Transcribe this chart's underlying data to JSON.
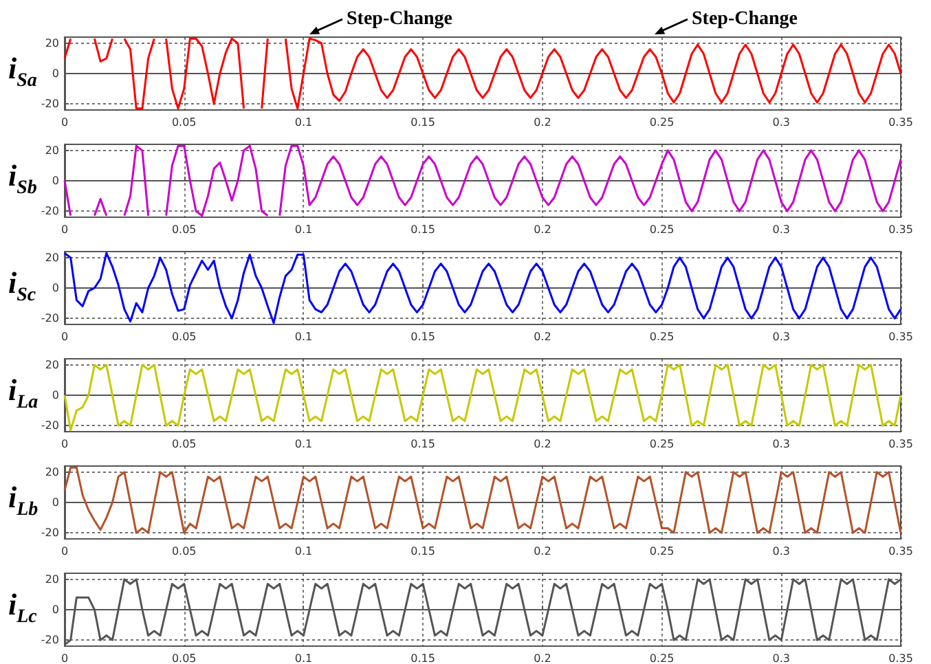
{
  "chart_data": [
    {
      "type": "line",
      "ylabel": "i$_{Sa}$",
      "color": "#ff0000",
      "grid": true,
      "xlim": [
        0,
        0.35
      ],
      "xticks": [
        0,
        0.05,
        0.1,
        0.15,
        0.2,
        0.25,
        0.3,
        0.35
      ],
      "ylim": [
        -24,
        24
      ],
      "yticks": [
        -20,
        0,
        20
      ],
      "annotations": [
        "Step-Change",
        "Step-Change"
      ],
      "x": [
        0,
        0.0025,
        0.005,
        0.0075,
        0.01,
        0.0125,
        0.015,
        0.0175,
        0.02,
        0.0225,
        0.025,
        0.0275,
        0.03,
        0.0325,
        0.035,
        0.0375,
        0.04,
        0.0425,
        0.045,
        0.0475,
        0.05,
        0.0525,
        0.055,
        0.0575,
        0.06,
        0.0625,
        0.065,
        0.0675,
        0.07,
        0.0725,
        0.075,
        0.0775,
        0.08,
        0.0825,
        0.085,
        0.0875,
        0.09,
        0.0925,
        0.095,
        0.0975,
        0.1,
        0.1025,
        0.105,
        0.1075,
        0.11,
        0.1125,
        0.115,
        0.1175,
        0.12,
        0.1225,
        0.125,
        0.1275,
        0.13,
        0.1325,
        0.135,
        0.1375,
        0.14,
        0.1425,
        0.145,
        0.1475,
        0.15,
        0.1525,
        0.155,
        0.1575,
        0.16,
        0.1625,
        0.165,
        0.1675,
        0.17,
        0.1725,
        0.175,
        0.1775,
        0.18,
        0.1825,
        0.185,
        0.1875,
        0.19,
        0.1925,
        0.195,
        0.1975,
        0.2,
        0.2025,
        0.205,
        0.2075,
        0.21,
        0.2125,
        0.215,
        0.2175,
        0.22,
        0.2225,
        0.225,
        0.2275,
        0.23,
        0.2325,
        0.235,
        0.2375,
        0.24,
        0.2425,
        0.245,
        0.2475,
        0.25,
        0.2525,
        0.255,
        0.2575,
        0.26,
        0.2625,
        0.265,
        0.2675,
        0.27,
        0.2725,
        0.275,
        0.2775,
        0.28,
        0.2825,
        0.285,
        0.2875,
        0.29,
        0.2925,
        0.295,
        0.2975,
        0.3,
        0.3025,
        0.305,
        0.3075,
        0.31,
        0.3125,
        0.315,
        0.3175,
        0.32,
        0.3225,
        0.325,
        0.3275,
        0.33,
        0.3325,
        0.335,
        0.3375,
        0.34,
        0.3425,
        0.345,
        0.3475,
        0.35
      ],
      "values": [
        10,
        23,
        null,
        null,
        null,
        23,
        8,
        10,
        23,
        null,
        23,
        16,
        -23,
        -23,
        10,
        23,
        null,
        23,
        -10,
        -23,
        -10,
        23,
        23,
        18,
        0,
        -20,
        0,
        14,
        23,
        20,
        -23,
        null,
        null,
        -23,
        23,
        null,
        null,
        23,
        -10,
        -23,
        0,
        23,
        22,
        20,
        0,
        -14,
        -18,
        -12,
        0,
        11,
        16,
        11,
        0,
        -11,
        -16,
        -11,
        0,
        11,
        16,
        11,
        0,
        -11,
        -16,
        -11,
        0,
        11,
        16,
        11,
        0,
        -11,
        -16,
        -11,
        0,
        11,
        16,
        11,
        0,
        -11,
        -16,
        -11,
        0,
        11,
        16,
        11,
        0,
        -11,
        -16,
        -11,
        0,
        11,
        16,
        11,
        0,
        -11,
        -16,
        -11,
        0,
        11,
        16,
        11,
        0,
        -13,
        -19,
        -13,
        0,
        13,
        19,
        13,
        0,
        -13,
        -19,
        -13,
        0,
        13,
        19,
        13,
        0,
        -13,
        -19,
        -13,
        0,
        13,
        19,
        13,
        0,
        -13,
        -19,
        -13,
        0,
        13,
        19,
        13,
        0,
        -13,
        -19,
        -13,
        0,
        13,
        19,
        13,
        0
      ]
    },
    {
      "type": "line",
      "ylabel": "i$_{Sb}$",
      "color": "#cc00cc",
      "grid": true,
      "xlim": [
        0,
        0.35
      ],
      "xticks": [
        0,
        0.05,
        0.1,
        0.15,
        0.2,
        0.25,
        0.3,
        0.35
      ],
      "ylim": [
        -24,
        24
      ],
      "yticks": [
        -20,
        0,
        20
      ],
      "x": [
        0,
        0.0025,
        0.005,
        0.0075,
        0.01,
        0.0125,
        0.015,
        0.0175,
        0.02,
        0.0225,
        0.025,
        0.0275,
        0.03,
        0.0325,
        0.035,
        0.0375,
        0.04,
        0.0425,
        0.045,
        0.0475,
        0.05,
        0.0525,
        0.055,
        0.0575,
        0.06,
        0.0625,
        0.065,
        0.0675,
        0.07,
        0.0725,
        0.075,
        0.0775,
        0.08,
        0.0825,
        0.085,
        0.0875,
        0.09,
        0.0925,
        0.095,
        0.0975,
        0.1,
        0.1025,
        0.105,
        0.1075,
        0.11,
        0.1125,
        0.115,
        0.1175,
        0.12,
        0.1225,
        0.125,
        0.1275,
        0.13,
        0.1325,
        0.135,
        0.1375,
        0.14,
        0.1425,
        0.145,
        0.1475,
        0.15,
        0.1525,
        0.155,
        0.1575,
        0.16,
        0.1625,
        0.165,
        0.1675,
        0.17,
        0.1725,
        0.175,
        0.1775,
        0.18,
        0.1825,
        0.185,
        0.1875,
        0.19,
        0.1925,
        0.195,
        0.1975,
        0.2,
        0.2025,
        0.205,
        0.2075,
        0.21,
        0.2125,
        0.215,
        0.2175,
        0.22,
        0.2225,
        0.225,
        0.2275,
        0.23,
        0.2325,
        0.235,
        0.2375,
        0.24,
        0.2425,
        0.245,
        0.2475,
        0.25,
        0.2525,
        0.255,
        0.2575,
        0.26,
        0.2625,
        0.265,
        0.2675,
        0.27,
        0.2725,
        0.275,
        0.2775,
        0.28,
        0.2825,
        0.285,
        0.2875,
        0.29,
        0.2925,
        0.295,
        0.2975,
        0.3,
        0.3025,
        0.305,
        0.3075,
        0.31,
        0.3125,
        0.315,
        0.3175,
        0.32,
        0.3225,
        0.325,
        0.3275,
        0.33,
        0.3325,
        0.335,
        0.3375,
        0.34,
        0.3425,
        0.345,
        0.3475,
        0.35
      ],
      "values": [
        0,
        -23,
        null,
        null,
        null,
        -23,
        -12,
        -23,
        null,
        null,
        -23,
        -10,
        23,
        20,
        -23,
        null,
        null,
        -23,
        10,
        23,
        23,
        0,
        -20,
        -23,
        -10,
        8,
        12,
        0,
        -13,
        0,
        20,
        23,
        8,
        -20,
        -23,
        null,
        -23,
        10,
        23,
        23,
        10,
        -16,
        -11,
        0,
        11,
        16,
        11,
        0,
        -11,
        -16,
        -11,
        0,
        11,
        16,
        11,
        0,
        -11,
        -16,
        -11,
        0,
        11,
        16,
        11,
        0,
        -11,
        -16,
        -11,
        0,
        11,
        16,
        11,
        0,
        -11,
        -16,
        -11,
        0,
        11,
        16,
        11,
        0,
        -11,
        -16,
        -11,
        0,
        11,
        16,
        11,
        0,
        -11,
        -16,
        -11,
        0,
        11,
        16,
        11,
        0,
        -11,
        -16,
        -11,
        0,
        11,
        20,
        14,
        0,
        -14,
        -20,
        -14,
        0,
        14,
        20,
        14,
        0,
        -14,
        -20,
        -14,
        0,
        14,
        20,
        14,
        0,
        -14,
        -20,
        -14,
        0,
        14,
        20,
        14,
        0,
        -14,
        -20,
        -14,
        0,
        14,
        20,
        14,
        0,
        -14,
        -20,
        -14,
        0,
        14
      ]
    },
    {
      "type": "line",
      "ylabel": "i$_{Sc}$",
      "color": "#0000ff",
      "grid": true,
      "xlim": [
        0,
        0.35
      ],
      "xticks": [
        0,
        0.05,
        0.1,
        0.15,
        0.2,
        0.25,
        0.3,
        0.35
      ],
      "ylim": [
        -24,
        24
      ],
      "yticks": [
        -20,
        0,
        20
      ],
      "x": [
        0,
        0.0025,
        0.005,
        0.0075,
        0.01,
        0.0125,
        0.015,
        0.0175,
        0.02,
        0.0225,
        0.025,
        0.0275,
        0.03,
        0.0325,
        0.035,
        0.0375,
        0.04,
        0.0425,
        0.045,
        0.0475,
        0.05,
        0.0525,
        0.055,
        0.0575,
        0.06,
        0.0625,
        0.065,
        0.0675,
        0.07,
        0.0725,
        0.075,
        0.0775,
        0.08,
        0.0825,
        0.085,
        0.0875,
        0.09,
        0.0925,
        0.095,
        0.0975,
        0.1,
        0.1025,
        0.105,
        0.1075,
        0.11,
        0.1125,
        0.115,
        0.1175,
        0.12,
        0.1225,
        0.125,
        0.1275,
        0.13,
        0.1325,
        0.135,
        0.1375,
        0.14,
        0.1425,
        0.145,
        0.1475,
        0.15,
        0.1525,
        0.155,
        0.1575,
        0.16,
        0.1625,
        0.165,
        0.1675,
        0.17,
        0.1725,
        0.175,
        0.1775,
        0.18,
        0.1825,
        0.185,
        0.1875,
        0.19,
        0.1925,
        0.195,
        0.1975,
        0.2,
        0.2025,
        0.205,
        0.2075,
        0.21,
        0.2125,
        0.215,
        0.2175,
        0.22,
        0.2225,
        0.225,
        0.2275,
        0.23,
        0.2325,
        0.235,
        0.2375,
        0.24,
        0.2425,
        0.245,
        0.2475,
        0.25,
        0.2525,
        0.255,
        0.2575,
        0.26,
        0.2625,
        0.265,
        0.2675,
        0.27,
        0.2725,
        0.275,
        0.2775,
        0.28,
        0.2825,
        0.285,
        0.2875,
        0.29,
        0.2925,
        0.295,
        0.2975,
        0.3,
        0.3025,
        0.305,
        0.3075,
        0.31,
        0.3125,
        0.315,
        0.3175,
        0.32,
        0.3225,
        0.325,
        0.3275,
        0.33,
        0.3325,
        0.335,
        0.3375,
        0.34,
        0.3425,
        0.345,
        0.3475,
        0.35
      ],
      "values": [
        23,
        20,
        -8,
        -12,
        -2,
        0,
        6,
        23,
        14,
        2,
        -14,
        -22,
        -10,
        -16,
        0,
        8,
        20,
        12,
        -4,
        -15,
        -14,
        2,
        10,
        18,
        12,
        18,
        0,
        -12,
        -20,
        -8,
        10,
        22,
        8,
        0,
        -12,
        -23,
        -6,
        8,
        12,
        22,
        22,
        -8,
        -14,
        -16,
        -11,
        0,
        11,
        16,
        11,
        0,
        -11,
        -16,
        -11,
        0,
        11,
        16,
        11,
        0,
        -11,
        -16,
        -11,
        0,
        11,
        16,
        11,
        0,
        -11,
        -16,
        -11,
        0,
        11,
        16,
        11,
        0,
        -11,
        -16,
        -11,
        0,
        11,
        16,
        11,
        0,
        -11,
        -16,
        -11,
        0,
        11,
        16,
        11,
        0,
        -11,
        -16,
        -11,
        0,
        11,
        16,
        11,
        0,
        -11,
        -16,
        -11,
        0,
        14,
        20,
        14,
        0,
        -14,
        -20,
        -14,
        0,
        14,
        20,
        14,
        0,
        -14,
        -20,
        -14,
        0,
        14,
        20,
        14,
        0,
        -14,
        -20,
        -14,
        0,
        14,
        20,
        14,
        0,
        -14,
        -20,
        -14,
        0,
        14,
        20,
        14,
        0,
        -14,
        -20,
        -14
      ]
    },
    {
      "type": "line",
      "ylabel": "i$_{La}$",
      "color": "#c8c800",
      "grid": true,
      "xlim": [
        0,
        0.35
      ],
      "xticks": [
        0,
        0.05,
        0.1,
        0.15,
        0.2,
        0.25,
        0.3,
        0.35
      ],
      "ylim": [
        -24,
        24
      ],
      "yticks": [
        -20,
        0,
        20
      ],
      "x": [
        0,
        0.0025,
        0.005,
        0.0075,
        0.01,
        0.0125,
        0.015,
        0.0175,
        0.02,
        0.0225,
        0.025,
        0.0275,
        0.03,
        0.0325,
        0.035,
        0.0375,
        0.04,
        0.0425,
        0.045,
        0.0475,
        0.05,
        0.0525,
        0.055,
        0.0575,
        0.06,
        0.0625,
        0.065,
        0.0675,
        0.07,
        0.0725,
        0.075,
        0.0775,
        0.08,
        0.0825,
        0.085,
        0.0875,
        0.09,
        0.0925,
        0.095,
        0.0975,
        0.1,
        0.1025,
        0.105,
        0.1075,
        0.11,
        0.1125,
        0.115,
        0.1175,
        0.12,
        0.1225,
        0.125,
        0.1275,
        0.13,
        0.1325,
        0.135,
        0.1375,
        0.14,
        0.1425,
        0.145,
        0.1475,
        0.15,
        0.1525,
        0.155,
        0.1575,
        0.16,
        0.1625,
        0.165,
        0.1675,
        0.17,
        0.1725,
        0.175,
        0.1775,
        0.18,
        0.1825,
        0.185,
        0.1875,
        0.19,
        0.1925,
        0.195,
        0.1975,
        0.2,
        0.2025,
        0.205,
        0.2075,
        0.21,
        0.2125,
        0.215,
        0.2175,
        0.22,
        0.2225,
        0.225,
        0.2275,
        0.23,
        0.2325,
        0.235,
        0.2375,
        0.24,
        0.2425,
        0.245,
        0.2475,
        0.25,
        0.2525,
        0.255,
        0.2575,
        0.26,
        0.2625,
        0.265,
        0.2675,
        0.27,
        0.2725,
        0.275,
        0.2775,
        0.28,
        0.2825,
        0.285,
        0.2875,
        0.29,
        0.2925,
        0.295,
        0.2975,
        0.3,
        0.3025,
        0.305,
        0.3075,
        0.31,
        0.3125,
        0.315,
        0.3175,
        0.32,
        0.3225,
        0.325,
        0.3275,
        0.33,
        0.3325,
        0.335,
        0.3375,
        0.34,
        0.3425,
        0.345,
        0.3475,
        0.35
      ],
      "values": [
        0,
        -23,
        -10,
        -8,
        0,
        20,
        17,
        20,
        0,
        -20,
        -17,
        -20,
        0,
        20,
        17,
        20,
        0,
        -20,
        -17,
        -20,
        0,
        17,
        14,
        17,
        0,
        -17,
        -14,
        -17,
        0,
        17,
        14,
        17,
        0,
        -17,
        -14,
        -17,
        0,
        17,
        14,
        17,
        0,
        -17,
        -14,
        -17,
        0,
        17,
        14,
        17,
        0,
        -17,
        -14,
        -17,
        0,
        17,
        14,
        17,
        0,
        -17,
        -14,
        -17,
        0,
        17,
        14,
        17,
        0,
        -17,
        -14,
        -17,
        0,
        17,
        14,
        17,
        0,
        -17,
        -14,
        -17,
        0,
        17,
        14,
        17,
        0,
        -17,
        -14,
        -17,
        0,
        17,
        14,
        17,
        0,
        -17,
        -14,
        -17,
        0,
        17,
        14,
        17,
        0,
        -17,
        -14,
        -17,
        0,
        20,
        17,
        20,
        0,
        -20,
        -17,
        -20,
        0,
        20,
        17,
        20,
        0,
        -20,
        -17,
        -20,
        0,
        20,
        17,
        20,
        0,
        -20,
        -17,
        -20,
        0,
        20,
        17,
        20,
        0,
        -20,
        -17,
        -20,
        0,
        20,
        17,
        20,
        0,
        -20,
        -17,
        -20,
        0
      ]
    },
    {
      "type": "line",
      "ylabel": "i$_{Lb}$",
      "color": "#b5522a",
      "grid": true,
      "xlim": [
        0,
        0.35
      ],
      "xticks": [
        0,
        0.05,
        0.1,
        0.15,
        0.2,
        0.25,
        0.3,
        0.35
      ],
      "ylim": [
        -24,
        24
      ],
      "yticks": [
        -20,
        0,
        20
      ],
      "x": [
        0,
        0.0025,
        0.005,
        0.0075,
        0.01,
        0.0125,
        0.015,
        0.0175,
        0.02,
        0.0225,
        0.025,
        0.0275,
        0.03,
        0.0325,
        0.035,
        0.0375,
        0.04,
        0.0425,
        0.045,
        0.0475,
        0.05,
        0.0525,
        0.055,
        0.0575,
        0.06,
        0.0625,
        0.065,
        0.0675,
        0.07,
        0.0725,
        0.075,
        0.0775,
        0.08,
        0.0825,
        0.085,
        0.0875,
        0.09,
        0.0925,
        0.095,
        0.0975,
        0.1,
        0.1025,
        0.105,
        0.1075,
        0.11,
        0.1125,
        0.115,
        0.1175,
        0.12,
        0.1225,
        0.125,
        0.1275,
        0.13,
        0.1325,
        0.135,
        0.1375,
        0.14,
        0.1425,
        0.145,
        0.1475,
        0.15,
        0.1525,
        0.155,
        0.1575,
        0.16,
        0.1625,
        0.165,
        0.1675,
        0.17,
        0.1725,
        0.175,
        0.1775,
        0.18,
        0.1825,
        0.185,
        0.1875,
        0.19,
        0.1925,
        0.195,
        0.1975,
        0.2,
        0.2025,
        0.205,
        0.2075,
        0.21,
        0.2125,
        0.215,
        0.2175,
        0.22,
        0.2225,
        0.225,
        0.2275,
        0.23,
        0.2325,
        0.235,
        0.2375,
        0.24,
        0.2425,
        0.245,
        0.2475,
        0.25,
        0.2525,
        0.255,
        0.2575,
        0.26,
        0.2625,
        0.265,
        0.2675,
        0.27,
        0.2725,
        0.275,
        0.2775,
        0.28,
        0.2825,
        0.285,
        0.2875,
        0.29,
        0.2925,
        0.295,
        0.2975,
        0.3,
        0.3025,
        0.305,
        0.3075,
        0.31,
        0.3125,
        0.315,
        0.3175,
        0.32,
        0.3225,
        0.325,
        0.3275,
        0.33,
        0.3325,
        0.335,
        0.3375,
        0.34,
        0.3425,
        0.345,
        0.3475,
        0.35
      ],
      "values": [
        8,
        23,
        23,
        5,
        -5,
        -12,
        -18,
        -10,
        0,
        17,
        20,
        0,
        -20,
        -17,
        -20,
        0,
        20,
        17,
        20,
        0,
        -20,
        -14,
        -17,
        0,
        17,
        14,
        17,
        0,
        -17,
        -14,
        -17,
        0,
        17,
        14,
        17,
        0,
        -17,
        -14,
        -17,
        0,
        17,
        14,
        17,
        0,
        -17,
        -14,
        -17,
        0,
        17,
        14,
        17,
        0,
        -17,
        -14,
        -17,
        0,
        17,
        14,
        17,
        0,
        -17,
        -14,
        -17,
        0,
        17,
        14,
        17,
        0,
        -17,
        -14,
        -17,
        0,
        17,
        14,
        17,
        0,
        -17,
        -14,
        -17,
        0,
        17,
        14,
        17,
        0,
        -17,
        -14,
        -17,
        0,
        17,
        14,
        17,
        0,
        -17,
        -14,
        -17,
        0,
        17,
        14,
        17,
        0,
        -17,
        -17,
        -20,
        0,
        20,
        17,
        20,
        0,
        -20,
        -17,
        -20,
        0,
        20,
        17,
        20,
        0,
        -20,
        -17,
        -20,
        0,
        20,
        17,
        20,
        0,
        -20,
        -17,
        -20,
        0,
        20,
        17,
        20,
        0,
        -20,
        -17,
        -20,
        0,
        20,
        17,
        20,
        0,
        -20
      ]
    },
    {
      "type": "line",
      "ylabel": "i$_{Lc}$",
      "color": "#555555",
      "grid": true,
      "xlim": [
        0,
        0.35
      ],
      "xticks": [
        0,
        0.05,
        0.1,
        0.15,
        0.2,
        0.25,
        0.3,
        0.35
      ],
      "ylim": [
        -24,
        24
      ],
      "yticks": [
        -20,
        0,
        20
      ],
      "x": [
        0,
        0.0025,
        0.005,
        0.0075,
        0.01,
        0.0125,
        0.015,
        0.0175,
        0.02,
        0.0225,
        0.025,
        0.0275,
        0.03,
        0.0325,
        0.035,
        0.0375,
        0.04,
        0.0425,
        0.045,
        0.0475,
        0.05,
        0.0525,
        0.055,
        0.0575,
        0.06,
        0.0625,
        0.065,
        0.0675,
        0.07,
        0.0725,
        0.075,
        0.0775,
        0.08,
        0.0825,
        0.085,
        0.0875,
        0.09,
        0.0925,
        0.095,
        0.0975,
        0.1,
        0.1025,
        0.105,
        0.1075,
        0.11,
        0.1125,
        0.115,
        0.1175,
        0.12,
        0.1225,
        0.125,
        0.1275,
        0.13,
        0.1325,
        0.135,
        0.1375,
        0.14,
        0.1425,
        0.145,
        0.1475,
        0.15,
        0.1525,
        0.155,
        0.1575,
        0.16,
        0.1625,
        0.165,
        0.1675,
        0.17,
        0.1725,
        0.175,
        0.1775,
        0.18,
        0.1825,
        0.185,
        0.1875,
        0.19,
        0.1925,
        0.195,
        0.1975,
        0.2,
        0.2025,
        0.205,
        0.2075,
        0.21,
        0.2125,
        0.215,
        0.2175,
        0.22,
        0.2225,
        0.225,
        0.2275,
        0.23,
        0.2325,
        0.235,
        0.2375,
        0.24,
        0.2425,
        0.245,
        0.2475,
        0.25,
        0.2525,
        0.255,
        0.2575,
        0.26,
        0.2625,
        0.265,
        0.2675,
        0.27,
        0.2725,
        0.275,
        0.2775,
        0.28,
        0.2825,
        0.285,
        0.2875,
        0.29,
        0.2925,
        0.295,
        0.2975,
        0.3,
        0.3025,
        0.305,
        0.3075,
        0.31,
        0.3125,
        0.315,
        0.3175,
        0.32,
        0.3225,
        0.325,
        0.3275,
        0.33,
        0.3325,
        0.335,
        0.3375,
        0.34,
        0.3425,
        0.345,
        0.3475,
        0.35
      ],
      "values": [
        -23,
        -20,
        8,
        8,
        8,
        0,
        -20,
        -17,
        -20,
        0,
        20,
        17,
        20,
        0,
        -17,
        -14,
        -17,
        0,
        17,
        14,
        17,
        0,
        -17,
        -14,
        -17,
        0,
        17,
        14,
        17,
        0,
        -17,
        -14,
        -17,
        0,
        17,
        14,
        17,
        0,
        -17,
        -14,
        -17,
        0,
        17,
        14,
        17,
        0,
        -17,
        -14,
        -17,
        0,
        17,
        14,
        17,
        0,
        -17,
        -14,
        -17,
        0,
        17,
        14,
        17,
        0,
        -17,
        -14,
        -17,
        0,
        17,
        14,
        17,
        0,
        -17,
        -14,
        -17,
        0,
        17,
        14,
        17,
        0,
        -17,
        -14,
        -17,
        0,
        17,
        14,
        17,
        0,
        -17,
        -14,
        -17,
        0,
        17,
        14,
        17,
        0,
        -17,
        -14,
        -17,
        0,
        17,
        14,
        17,
        0,
        -20,
        -17,
        -20,
        0,
        20,
        17,
        20,
        0,
        -20,
        -17,
        -20,
        0,
        20,
        17,
        20,
        0,
        -20,
        -17,
        -20,
        0,
        20,
        17,
        20,
        0,
        -20,
        -17,
        -20,
        0,
        20,
        17,
        20,
        0,
        -20,
        -17,
        -20,
        0,
        20,
        17,
        20
      ]
    }
  ]
}
